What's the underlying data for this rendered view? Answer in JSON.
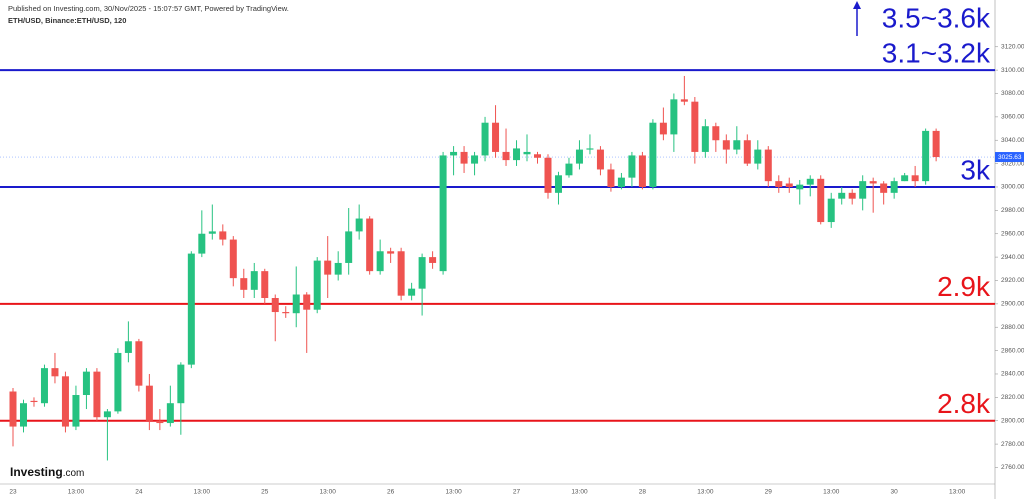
{
  "header": {
    "published": "Published on Investing.com, 30/Nov/2025 - 15:07:57 GMT, Powered by TradingView.",
    "symbol": "ETH/USD, Binance:ETH/USD, 120"
  },
  "logo": {
    "brand": "Investing",
    "suffix": ".com"
  },
  "chart_data": {
    "type": "candlestick",
    "up_color": "#26c281",
    "down_color": "#ef5350",
    "categories": [
      "23",
      null,
      null,
      null,
      null,
      null,
      "13:00",
      null,
      null,
      null,
      null,
      null,
      "24",
      null,
      null,
      null,
      null,
      null,
      "13:00",
      null,
      null,
      null,
      null,
      null,
      "25",
      null,
      null,
      null,
      null,
      null,
      "13:00",
      null,
      null,
      null,
      null,
      null,
      "26",
      null,
      null,
      null,
      null,
      null,
      "13:00",
      null,
      null,
      null,
      null,
      null,
      "27",
      null,
      null,
      null,
      null,
      null,
      "13:00",
      null,
      null,
      null,
      null,
      null,
      "28",
      null,
      null,
      null,
      null,
      null,
      "13:00",
      null,
      null,
      null,
      null,
      null,
      "29",
      null,
      null,
      null,
      null,
      null,
      "13:00",
      null,
      null,
      null,
      null,
      null,
      "30",
      null,
      null,
      null,
      null,
      null,
      "13:00"
    ],
    "open": [
      2825,
      2795,
      2817,
      2815,
      2845,
      2838,
      2795,
      2822,
      2842,
      2803,
      2808,
      2858,
      2868,
      2830,
      2800,
      2798,
      2815,
      2848,
      2943,
      2960,
      2962,
      2955,
      2922,
      2912,
      2928,
      2905,
      2893,
      2892,
      2908,
      2895,
      2937,
      2925,
      2935,
      2962,
      2973,
      2928,
      2945,
      2945,
      2907,
      2913,
      2940,
      2928,
      3027,
      3030,
      3020,
      3027,
      3055,
      3030,
      3023,
      3028,
      3028,
      3025,
      2995,
      3010,
      3020,
      3032,
      3032,
      3015,
      3000,
      3008,
      3027,
      3000,
      3055,
      3045,
      3075,
      3073,
      3030,
      3052,
      3040,
      3032,
      3040,
      3020,
      3032,
      3005,
      3003,
      2998,
      3002,
      3007,
      2970,
      2990,
      2995,
      2990,
      3005,
      3003,
      2995,
      3005,
      3010,
      3005,
      3048,
      null,
      null
    ],
    "high": [
      2828,
      2818,
      2820,
      2848,
      2858,
      2842,
      2830,
      2845,
      2845,
      2810,
      2862,
      2885,
      2870,
      2840,
      2810,
      2830,
      2850,
      2945,
      2980,
      2985,
      2968,
      2958,
      2930,
      2935,
      2930,
      2908,
      2898,
      2932,
      2910,
      2940,
      2958,
      2945,
      2982,
      2985,
      2975,
      2955,
      2948,
      2948,
      2918,
      2943,
      2945,
      3030,
      3035,
      3035,
      3030,
      3060,
      3070,
      3050,
      3040,
      3045,
      3030,
      3028,
      3013,
      3025,
      3040,
      3045,
      3035,
      3020,
      3012,
      3030,
      3030,
      3058,
      3068,
      3080,
      3095,
      3077,
      3058,
      3055,
      3045,
      3052,
      3045,
      3040,
      3035,
      3010,
      3008,
      3006,
      3010,
      3010,
      2995,
      3000,
      2998,
      3010,
      3008,
      3005,
      3008,
      3012,
      3018,
      3050,
      3050,
      null,
      null
    ],
    "low": [
      2778,
      2790,
      2812,
      2812,
      2832,
      2790,
      2792,
      2810,
      2800,
      2766,
      2806,
      2850,
      2825,
      2792,
      2792,
      2795,
      2788,
      2845,
      2940,
      2955,
      2950,
      2915,
      2905,
      2905,
      2900,
      2868,
      2888,
      2880,
      2858,
      2892,
      2905,
      2920,
      2925,
      2955,
      2925,
      2925,
      2935,
      2903,
      2903,
      2890,
      2930,
      2925,
      3010,
      3012,
      3010,
      3022,
      3025,
      3018,
      3018,
      3022,
      3020,
      2990,
      2985,
      3008,
      3015,
      3028,
      3010,
      2996,
      2998,
      3000,
      2998,
      2998,
      3040,
      3030,
      3070,
      3020,
      3025,
      3030,
      3020,
      3028,
      3018,
      3015,
      3000,
      2995,
      2995,
      2985,
      2992,
      2968,
      2965,
      2985,
      2985,
      2980,
      2978,
      2985,
      2990,
      3005,
      3000,
      3002,
      3022,
      null,
      null
    ],
    "close": [
      2795,
      2815,
      2816,
      2845,
      2838,
      2795,
      2822,
      2842,
      2803,
      2808,
      2858,
      2868,
      2830,
      2800,
      2798,
      2815,
      2848,
      2943,
      2960,
      2962,
      2955,
      2922,
      2912,
      2928,
      2905,
      2893,
      2892,
      2908,
      2895,
      2937,
      2925,
      2935,
      2962,
      2973,
      2928,
      2945,
      2943,
      2907,
      2913,
      2940,
      2935,
      3027,
      3030,
      3020,
      3027,
      3055,
      3030,
      3023,
      3033,
      3030,
      3025,
      2995,
      3010,
      3020,
      3032,
      3033,
      3015,
      3000,
      3008,
      3027,
      3000,
      3055,
      3045,
      3075,
      3073,
      3030,
      3052,
      3040,
      3032,
      3040,
      3020,
      3032,
      3005,
      3000,
      3000,
      3002,
      3007,
      2970,
      2990,
      2995,
      2990,
      3005,
      3003,
      2995,
      3005,
      3010,
      3005,
      3048,
      3025.63,
      null,
      null
    ],
    "ylim": [
      2745,
      3160
    ],
    "yticks": [
      {
        "value": 2760,
        "label": "2760.00"
      },
      {
        "value": 2780,
        "label": "2780.00"
      },
      {
        "value": 2800,
        "label": "2800.00"
      },
      {
        "value": 2820,
        "label": "2820.00"
      },
      {
        "value": 2840,
        "label": "2840.00"
      },
      {
        "value": 2860,
        "label": "2860.00"
      },
      {
        "value": 2880,
        "label": "2880.00"
      },
      {
        "value": 2900,
        "label": "2900.00"
      },
      {
        "value": 2920,
        "label": "2920.00"
      },
      {
        "value": 2940,
        "label": "2940.00"
      },
      {
        "value": 2960,
        "label": "2960.00"
      },
      {
        "value": 2980,
        "label": "2980.00"
      },
      {
        "value": 3000,
        "label": "3000.00"
      },
      {
        "value": 3020,
        "label": "3020.00"
      },
      {
        "value": 3040,
        "label": "3040.00"
      },
      {
        "value": 3060,
        "label": "3060.00"
      },
      {
        "value": 3080,
        "label": "3080.00"
      },
      {
        "value": 3100,
        "label": "3100.00"
      },
      {
        "value": 3120,
        "label": "3120.00"
      }
    ],
    "last_price": {
      "value": 3025.63,
      "label": "3025.63",
      "color": "#2962ff"
    },
    "levels": [
      {
        "value": 3100,
        "label": "3.1~3.2k",
        "color": "#1a1acc"
      },
      {
        "value": 3000,
        "label": "3k",
        "color": "#1a1acc"
      },
      {
        "value": 2900,
        "label": "2.9k",
        "color": "#e8141a"
      },
      {
        "value": 2800,
        "label": "2.8k",
        "color": "#e8141a"
      }
    ],
    "target": {
      "label": "3.5~3.6k",
      "color": "#1a1acc"
    }
  }
}
